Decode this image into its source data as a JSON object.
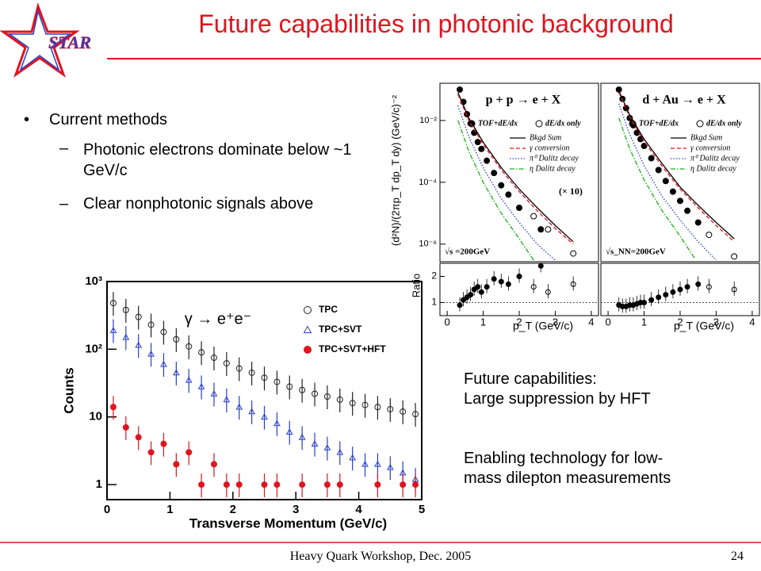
{
  "header": {
    "logo": "STAR",
    "title": "Future capabilities in photonic background"
  },
  "bullets": [
    {
      "text": "Current methods",
      "sub": [
        "Photonic electrons dominate below ~1 GeV/c",
        "Clear nonphotonic signals above"
      ]
    }
  ],
  "notes": [
    [
      "Future capabilities:",
      "Large suppression by HFT"
    ],
    [
      "Enabling technology for low-",
      "mass dilepton measurements"
    ]
  ],
  "footer": {
    "text": "Heavy Quark Workshop, Dec. 2005",
    "page": "24"
  },
  "chart_data": [
    {
      "type": "scatter",
      "xlabel": "Transverse Momentum (GeV/c)",
      "ylabel": "Counts",
      "annotation": "γ → e⁺e⁻",
      "log_y": true,
      "xlim": [
        0,
        5
      ],
      "xticks": [
        0,
        1,
        2,
        3,
        4,
        5
      ],
      "ylim": [
        0.6,
        1000
      ],
      "yticks": [
        1,
        10,
        {
          "value": 100,
          "label": "10²"
        },
        {
          "value": 1000,
          "label": "10³"
        }
      ],
      "legend": "upper right",
      "x": [
        0.1,
        0.3,
        0.5,
        0.7,
        0.9,
        1.1,
        1.3,
        1.5,
        1.7,
        1.9,
        2.1,
        2.3,
        2.5,
        2.7,
        2.9,
        3.1,
        3.3,
        3.5,
        3.7,
        3.9,
        4.1,
        4.3,
        4.5,
        4.7,
        4.9
      ],
      "series": [
        {
          "name": "TPC",
          "color": "#222222",
          "marker": "open-circle",
          "values": [
            480,
            380,
            300,
            230,
            180,
            140,
            110,
            90,
            75,
            62,
            52,
            45,
            38,
            33,
            28,
            25,
            22,
            20,
            18,
            16,
            15,
            14,
            13,
            12,
            11
          ]
        },
        {
          "name": "TPC+SVT",
          "color": "#2a3fc8",
          "marker": "open-triangle",
          "values": [
            190,
            150,
            115,
            85,
            60,
            45,
            35,
            28,
            22,
            18,
            14,
            12,
            10,
            8,
            6,
            5,
            4,
            3.5,
            3,
            2.5,
            2,
            2,
            1.8,
            1.5,
            1.2
          ]
        },
        {
          "name": "TPC+SVT+HFT",
          "color": "#e0141e",
          "marker": "filled-circle",
          "values": [
            14,
            7,
            5,
            3,
            4,
            2,
            3,
            1,
            2,
            1,
            1,
            null,
            1,
            1,
            null,
            1,
            null,
            1,
            1,
            null,
            null,
            1,
            null,
            1,
            1
          ]
        }
      ]
    },
    {
      "type": "spectra",
      "ylabel": "(d²N)/(2πp_T dp_T dy) (GeV/c)⁻²",
      "ratio_ylabel": "Ratio",
      "xlabel": "p_T (GeV/c)",
      "log_y": true,
      "xlim": [
        -0.2,
        4.2
      ],
      "xticks": [
        0,
        1,
        2,
        3,
        4
      ],
      "ylim": [
        2.7e-07,
        0.16
      ],
      "yticks": [
        {
          "value": 1e-06,
          "label": "10⁻⁶"
        },
        {
          "value": 0.0001,
          "label": "10⁻⁴"
        },
        {
          "value": 0.01,
          "label": "10⁻²"
        }
      ],
      "ratio_ylim": [
        0.5,
        2.5
      ],
      "ratio_yticks": [
        1,
        2
      ],
      "ratio_reference": 1,
      "panels": [
        {
          "title": "p + p → e + X",
          "energy_label": "√s =200GeV",
          "annotation": "(× 10)",
          "series": [
            {
              "name": "TOF+dE/dx",
              "marker": "filled-circle",
              "color": "#000000",
              "x": [
                0.35,
                0.45,
                0.55,
                0.65,
                0.75,
                0.85,
                0.95,
                1.1,
                1.3,
                1.5,
                1.7,
                2.0,
                2.6
              ],
              "values": [
                0.1,
                0.04,
                0.016,
                0.008,
                0.004,
                0.002,
                0.0012,
                0.0005,
                0.0002,
                8e-05,
                4e-05,
                1.5e-05,
                3e-06
              ],
              "ratio": [
                0.9,
                1.1,
                1.2,
                1.3,
                1.5,
                1.6,
                1.4,
                1.6,
                1.9,
                1.8,
                1.7,
                2.0,
                2.4
              ]
            },
            {
              "name": "dE/dx only",
              "marker": "open-circle",
              "color": "#000000",
              "x": [
                2.4,
                2.8,
                3.5
              ],
              "values": [
                8e-06,
                3e-06,
                5e-07
              ],
              "ratio": [
                1.6,
                1.4,
                1.7
              ]
            },
            {
              "name": "Bkgd Sum",
              "style": "solid",
              "color": "#000000",
              "x": [
                0.3,
                0.6,
                1,
                1.5,
                2,
                2.5,
                3,
                3.5
              ],
              "values": [
                0.08,
                0.012,
                0.002,
                0.0003,
                6e-05,
                1.5e-05,
                4e-06,
                1.2e-06
              ]
            },
            {
              "name": "γ conversion",
              "style": "dashed",
              "color": "#e0141e",
              "x": [
                0.3,
                0.6,
                1,
                1.5,
                2,
                2.5,
                3,
                3.5
              ],
              "values": [
                0.07,
                0.01,
                0.0017,
                0.00025,
                5e-05,
                1.2e-05,
                3.2e-06,
                1e-06
              ]
            },
            {
              "name": "π⁰ Dalitz decay",
              "style": "dotted",
              "color": "#2a3fc8",
              "x": [
                0.3,
                0.6,
                1,
                1.5,
                2,
                2.5,
                3
              ],
              "values": [
                0.03,
                0.003,
                0.0003,
                3e-05,
                5e-06,
                1e-06,
                3e-07
              ]
            },
            {
              "name": "η Dalitz decay",
              "style": "dashdot",
              "color": "#19b319",
              "x": [
                0.3,
                0.6,
                1,
                1.5,
                2,
                2.4
              ],
              "values": [
                0.01,
                0.001,
                0.0001,
                1e-05,
                1.5e-06,
                3e-07
              ]
            }
          ]
        },
        {
          "title": "d + Au → e + X",
          "energy_label": "√s_NN=200GeV",
          "series": [
            {
              "name": "TOF+dE/dx",
              "marker": "filled-circle",
              "color": "#000000",
              "x": [
                0.3,
                0.4,
                0.5,
                0.6,
                0.7,
                0.8,
                0.9,
                1.0,
                1.2,
                1.4,
                1.6,
                1.8,
                2.0,
                2.2,
                2.5
              ],
              "values": [
                0.1,
                0.05,
                0.025,
                0.012,
                0.007,
                0.004,
                0.0025,
                0.0015,
                0.0006,
                0.00025,
                0.00011,
                5e-05,
                2.5e-05,
                1.2e-05,
                5e-06
              ],
              "ratio": [
                0.9,
                0.85,
                0.85,
                0.9,
                0.9,
                0.95,
                1.0,
                1.0,
                1.1,
                1.2,
                1.3,
                1.4,
                1.5,
                1.6,
                1.7
              ]
            },
            {
              "name": "dE/dx only",
              "marker": "open-circle",
              "color": "#000000",
              "x": [
                2.8,
                3.5
              ],
              "values": [
                2e-06,
                4e-07
              ],
              "ratio": [
                1.6,
                1.5
              ]
            },
            {
              "name": "Bkgd Sum",
              "style": "solid",
              "color": "#000000",
              "x": [
                0.3,
                0.6,
                1,
                1.5,
                2,
                2.5,
                3,
                3.5
              ],
              "values": [
                0.09,
                0.015,
                0.0025,
                0.0004,
                7e-05,
                1.8e-05,
                5e-06,
                1.5e-06
              ]
            },
            {
              "name": "γ conversion",
              "style": "dashed",
              "color": "#e0141e",
              "x": [
                0.3,
                0.6,
                1,
                1.5,
                2,
                2.5,
                3,
                3.5
              ],
              "values": [
                0.08,
                0.013,
                0.0021,
                0.00033,
                6e-05,
                1.5e-05,
                4e-06,
                1.2e-06
              ]
            },
            {
              "name": "π⁰ Dalitz decay",
              "style": "dotted",
              "color": "#2a3fc8",
              "x": [
                0.3,
                0.6,
                1,
                1.5,
                2,
                2.5,
                3
              ],
              "values": [
                0.035,
                0.0035,
                0.00035,
                3.5e-05,
                6e-06,
                1.2e-06,
                3e-07
              ]
            },
            {
              "name": "η Dalitz decay",
              "style": "dashdot",
              "color": "#19b319",
              "x": [
                0.3,
                0.6,
                1,
                1.5,
                2,
                2.4
              ],
              "values": [
                0.012,
                0.0012,
                0.00012,
                1.2e-05,
                1.8e-06,
                3.5e-07
              ]
            }
          ]
        }
      ]
    }
  ]
}
